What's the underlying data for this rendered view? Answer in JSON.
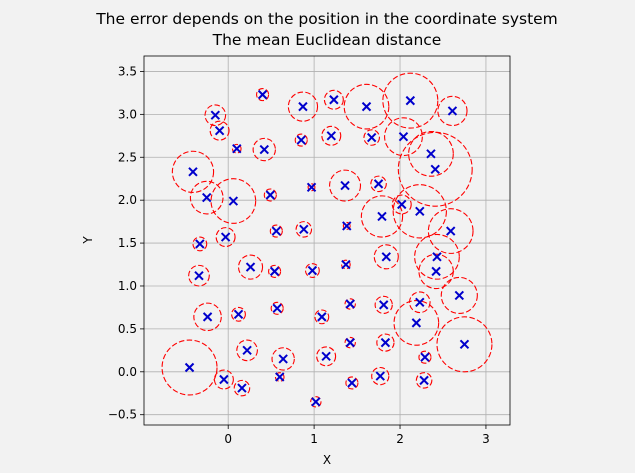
{
  "window": {
    "background": "#f2f2f2"
  },
  "chart_data": {
    "type": "scatter",
    "title": "The error depends on the position in the coordinate system",
    "subtitle": "The mean Euclidean distance",
    "xlabel": "X",
    "ylabel": "Y",
    "xlim": [
      -0.98,
      3.28
    ],
    "ylim": [
      -0.62,
      3.68
    ],
    "xticks": [
      0,
      1,
      2,
      3
    ],
    "yticks": [
      -0.5,
      0.0,
      0.5,
      1.0,
      1.5,
      2.0,
      2.5,
      3.0,
      3.5
    ],
    "xtick_labels": [
      "0",
      "1",
      "2",
      "3"
    ],
    "ytick_labels": [
      "−0.5",
      "0.0",
      "0.5",
      "1.0",
      "1.5",
      "2.0",
      "2.5",
      "3.0",
      "3.5"
    ],
    "grid": true,
    "colors": {
      "marker": "#0000cc",
      "error_circle": "#ff0000",
      "grid": "#b0b0b0"
    },
    "marker": "x",
    "circle_style": "dashed",
    "points": [
      {
        "x": 0.4,
        "y": 3.23,
        "r": 0.07
      },
      {
        "x": -0.15,
        "y": 2.99,
        "r": 0.12
      },
      {
        "x": -0.1,
        "y": 2.81,
        "r": 0.11
      },
      {
        "x": 0.87,
        "y": 3.09,
        "r": 0.17
      },
      {
        "x": 1.23,
        "y": 3.17,
        "r": 0.11
      },
      {
        "x": 1.61,
        "y": 3.09,
        "r": 0.26
      },
      {
        "x": 2.12,
        "y": 3.16,
        "r": 0.32
      },
      {
        "x": 2.61,
        "y": 3.04,
        "r": 0.17
      },
      {
        "x": 0.1,
        "y": 2.6,
        "r": 0.05
      },
      {
        "x": 0.42,
        "y": 2.59,
        "r": 0.13
      },
      {
        "x": 0.85,
        "y": 2.7,
        "r": 0.07
      },
      {
        "x": 1.2,
        "y": 2.75,
        "r": 0.11
      },
      {
        "x": 1.67,
        "y": 2.73,
        "r": 0.09
      },
      {
        "x": 2.04,
        "y": 2.74,
        "r": 0.22
      },
      {
        "x": 2.36,
        "y": 2.54,
        "r": 0.26
      },
      {
        "x": 2.41,
        "y": 2.36,
        "r": 0.43
      },
      {
        "x": -0.41,
        "y": 2.33,
        "r": 0.24
      },
      {
        "x": -0.25,
        "y": 2.03,
        "r": 0.19
      },
      {
        "x": 0.06,
        "y": 1.99,
        "r": 0.26
      },
      {
        "x": 0.49,
        "y": 2.06,
        "r": 0.07
      },
      {
        "x": 0.97,
        "y": 2.15,
        "r": 0.04
      },
      {
        "x": 1.36,
        "y": 2.17,
        "r": 0.18
      },
      {
        "x": 1.75,
        "y": 2.19,
        "r": 0.09
      },
      {
        "x": 2.02,
        "y": 1.95,
        "r": 0.11
      },
      {
        "x": 1.79,
        "y": 1.81,
        "r": 0.24
      },
      {
        "x": 2.23,
        "y": 1.87,
        "r": 0.31
      },
      {
        "x": -0.33,
        "y": 1.49,
        "r": 0.08
      },
      {
        "x": -0.03,
        "y": 1.57,
        "r": 0.11
      },
      {
        "x": 0.56,
        "y": 1.64,
        "r": 0.07
      },
      {
        "x": 0.88,
        "y": 1.66,
        "r": 0.09
      },
      {
        "x": 1.38,
        "y": 1.7,
        "r": 0.04
      },
      {
        "x": 2.59,
        "y": 1.64,
        "r": 0.26
      },
      {
        "x": 1.84,
        "y": 1.34,
        "r": 0.14
      },
      {
        "x": 2.43,
        "y": 1.34,
        "r": 0.26
      },
      {
        "x": 2.42,
        "y": 1.17,
        "r": 0.2
      },
      {
        "x": -0.34,
        "y": 1.12,
        "r": 0.12
      },
      {
        "x": 0.26,
        "y": 1.22,
        "r": 0.14
      },
      {
        "x": 0.54,
        "y": 1.17,
        "r": 0.07
      },
      {
        "x": 0.98,
        "y": 1.18,
        "r": 0.08
      },
      {
        "x": 1.37,
        "y": 1.25,
        "r": 0.05
      },
      {
        "x": -0.24,
        "y": 0.64,
        "r": 0.16
      },
      {
        "x": 0.12,
        "y": 0.67,
        "r": 0.08
      },
      {
        "x": 0.57,
        "y": 0.74,
        "r": 0.07
      },
      {
        "x": 1.09,
        "y": 0.64,
        "r": 0.08
      },
      {
        "x": 1.42,
        "y": 0.79,
        "r": 0.06
      },
      {
        "x": 1.81,
        "y": 0.78,
        "r": 0.1
      },
      {
        "x": 2.23,
        "y": 0.81,
        "r": 0.12
      },
      {
        "x": 2.69,
        "y": 0.89,
        "r": 0.21
      },
      {
        "x": 2.19,
        "y": 0.57,
        "r": 0.26
      },
      {
        "x": 0.22,
        "y": 0.25,
        "r": 0.12
      },
      {
        "x": 0.64,
        "y": 0.15,
        "r": 0.13
      },
      {
        "x": 1.14,
        "y": 0.18,
        "r": 0.11
      },
      {
        "x": 1.42,
        "y": 0.34,
        "r": 0.06
      },
      {
        "x": 1.83,
        "y": 0.34,
        "r": 0.1
      },
      {
        "x": 2.29,
        "y": 0.17,
        "r": 0.07
      },
      {
        "x": 2.75,
        "y": 0.32,
        "r": 0.32
      },
      {
        "x": -0.45,
        "y": 0.05,
        "r": 0.32
      },
      {
        "x": -0.05,
        "y": -0.09,
        "r": 0.11
      },
      {
        "x": 0.16,
        "y": -0.19,
        "r": 0.09
      },
      {
        "x": 0.6,
        "y": -0.06,
        "r": 0.05
      },
      {
        "x": 1.02,
        "y": -0.35,
        "r": 0.06
      },
      {
        "x": 1.44,
        "y": -0.13,
        "r": 0.07
      },
      {
        "x": 1.77,
        "y": -0.05,
        "r": 0.1
      },
      {
        "x": 2.28,
        "y": -0.1,
        "r": 0.09
      }
    ]
  }
}
